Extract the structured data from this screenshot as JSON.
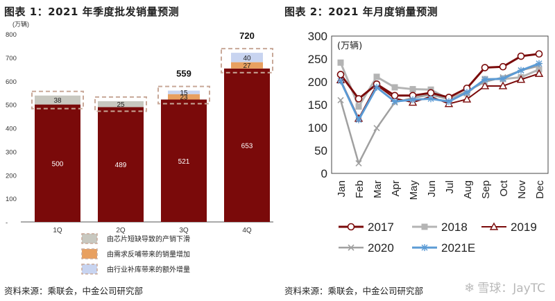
{
  "left_panel": {
    "figure_title": "图表 1：2021 年季度批发销量预测",
    "source": "资料来源：乘联会，中金公司研究部"
  },
  "right_panel": {
    "figure_title": "图表 2：2021 年月度销量预测",
    "source": "资料来源：乘联会，中金公司研究部"
  },
  "watermark": {
    "icon": "snowball-icon",
    "text": "雪球：JayTC"
  },
  "colors": {
    "base_bar": "#7a0a0a",
    "shortage": "#c8c8c0",
    "rebound": "#e8a060",
    "restock": "#c8d4f0",
    "dashed_outline": "#c8a898",
    "y2017": "#7a0a0a",
    "y2018": "#b4b4b4",
    "y2019": "#7a0a0a",
    "y2020": "#a0a0a0",
    "y2021E": "#5b9bd5"
  },
  "chart_data": [
    {
      "type": "bar",
      "stacked": true,
      "title": "2021 年季度批发销量预测",
      "ylabel": "(万辆)",
      "ylim": [
        0,
        800
      ],
      "yticks": [
        "-",
        "100",
        "200",
        "300",
        "400",
        "500",
        "600",
        "700",
        "800"
      ],
      "categories": [
        "1Q",
        "2Q",
        "3Q",
        "4Q"
      ],
      "base_values": [
        500,
        489,
        521,
        653
      ],
      "segments": [
        {
          "q": "1Q",
          "name": "shortage",
          "value": 38
        },
        {
          "q": "2Q",
          "name": "shortage",
          "value": 25
        },
        {
          "q": "3Q",
          "name": "rebound",
          "value": 23
        },
        {
          "q": "3Q",
          "name": "restock",
          "value": 15
        },
        {
          "q": "4Q",
          "name": "rebound",
          "value": 27
        },
        {
          "q": "4Q",
          "name": "restock",
          "value": 40
        }
      ],
      "totals": [
        {
          "q": "3Q",
          "value": "559"
        },
        {
          "q": "4Q",
          "value": "720"
        }
      ],
      "legend": [
        {
          "key": "shortage",
          "label": "由芯片短缺导致的产销下滑"
        },
        {
          "key": "rebound",
          "label": "由需求反哺带来的销量增加"
        },
        {
          "key": "restock",
          "label": "由行业补库带来的额外增量"
        }
      ]
    },
    {
      "type": "line",
      "title": "2021 年月度销量预测",
      "ylabel": "(万辆)",
      "ylim": [
        0,
        300
      ],
      "yticks": [
        0,
        50,
        100,
        150,
        200,
        250,
        300
      ],
      "categories": [
        "Jan",
        "Feb",
        "Mar",
        "Apr",
        "May",
        "Jun",
        "Jul",
        "Aug",
        "Sep",
        "Oct",
        "Nov",
        "Dec"
      ],
      "series": [
        {
          "name": "2017",
          "marker": "circle",
          "values": [
            216,
            163,
            195,
            170,
            170,
            176,
            166,
            186,
            231,
            233,
            256,
            261
          ]
        },
        {
          "name": "2018",
          "marker": "square",
          "values": [
            242,
            146,
            211,
            188,
            184,
            183,
            162,
            175,
            206,
            206,
            210,
            227
          ]
        },
        {
          "name": "2019",
          "marker": "triangle",
          "values": [
            204,
            120,
            193,
            164,
            155,
            168,
            152,
            162,
            191,
            191,
            205,
            218
          ]
        },
        {
          "name": "2020",
          "marker": "x",
          "values": [
            160,
            22,
            99,
            155,
            165,
            172,
            162,
            179,
            200,
            210,
            225,
            235
          ]
        },
        {
          "name": "2021E",
          "marker": "star",
          "values": [
            202,
            117,
            188,
            157,
            161,
            163,
            157,
            177,
            205,
            207,
            225,
            240
          ]
        }
      ]
    }
  ]
}
